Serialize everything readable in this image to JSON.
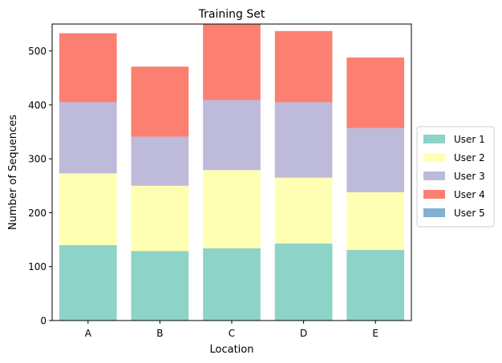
{
  "chart_data": {
    "type": "bar",
    "stacked": true,
    "title": "Training Set",
    "xlabel": "Location",
    "ylabel": "Number of Sequences",
    "categories": [
      "A",
      "B",
      "C",
      "D",
      "E"
    ],
    "ylim": [
      0,
      550
    ],
    "yticks": [
      0,
      100,
      200,
      300,
      400,
      500
    ],
    "grid": false,
    "legend_position": "right",
    "series": [
      {
        "name": "User 1",
        "color": "#8dd3c7",
        "values": [
          140,
          129,
          134,
          143,
          131
        ]
      },
      {
        "name": "User 2",
        "color": "#ffffb3",
        "values": [
          133,
          121,
          145,
          122,
          107
        ]
      },
      {
        "name": "User 3",
        "color": "#bebada",
        "values": [
          132,
          91,
          130,
          140,
          119
        ]
      },
      {
        "name": "User 4",
        "color": "#fb8072",
        "values": [
          128,
          130,
          141,
          132,
          131
        ]
      },
      {
        "name": "User 5",
        "color": "#80b1d3",
        "values": [
          0,
          0,
          0,
          0,
          0
        ]
      }
    ]
  }
}
